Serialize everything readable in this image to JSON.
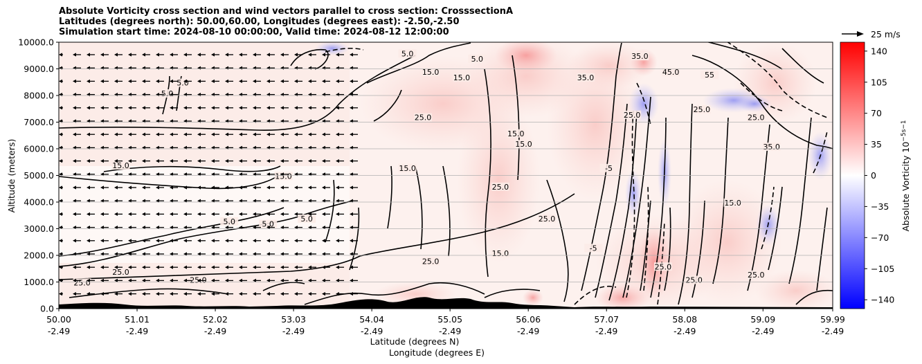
{
  "header": {
    "title_line1": "Absolute Vorticity cross section and wind vectors parallel to cross section: CrosssectionA",
    "title_line2": "Latitudes (degrees north): 50.00,60.00, Longitudes (degrees east): -2.50,-2.50",
    "title_line3": "Simulation start time: 2024-08-10 00:00:00, Valid time: 2024-08-12 12:00:00"
  },
  "chart_data": {
    "type": "heatmap",
    "ylabel": "Altitude (meters)",
    "xlabel_line1": "Latitude (degrees N)",
    "xlabel_line2": "Longitude (degrees E)",
    "x_ticks_lat": [
      "50.00",
      "51.01",
      "52.02",
      "53.03",
      "54.04",
      "55.05",
      "56.06",
      "57.07",
      "58.08",
      "59.09",
      "59.99"
    ],
    "x_ticks_lon": [
      "-2.49",
      "-2.49",
      "-2.49",
      "-2.49",
      "-2.49",
      "-2.49",
      "-2.49",
      "-2.49",
      "-2.49",
      "-2.49",
      "-2.49"
    ],
    "x_values": [
      50.0,
      51.01,
      52.02,
      53.03,
      54.04,
      55.05,
      56.06,
      57.07,
      58.08,
      59.09,
      59.99
    ],
    "xlim": [
      50.0,
      59.99
    ],
    "y_ticks": [
      "0.0",
      "1000.0",
      "2000.0",
      "3000.0",
      "4000.0",
      "5000.0",
      "6000.0",
      "7000.0",
      "8000.0",
      "9000.0",
      "10000.0"
    ],
    "y_values": [
      0,
      1000,
      2000,
      3000,
      4000,
      5000,
      6000,
      7000,
      8000,
      9000,
      10000
    ],
    "ylim": [
      0,
      10000
    ],
    "grid": "horizontal",
    "colorbar": {
      "label": "Absolute Vorticity 10",
      "label_unit": "−5s−1",
      "ticks": [
        "140",
        "105",
        "70",
        "35",
        "0",
        "−35",
        "−70",
        "−105",
        "−140"
      ],
      "tick_values": [
        140,
        105,
        70,
        35,
        0,
        -35,
        -70,
        -105,
        -140
      ],
      "range": [
        -150,
        150
      ],
      "colormap": "bwr",
      "low_color": "#0000ff",
      "mid_color": "#ffffff",
      "high_color": "#ff0000"
    },
    "quiver_key": {
      "label": "25 m/s"
    },
    "contour_labels": [
      {
        "text": "5.0",
        "x": 52.2,
        "y": 3200
      },
      {
        "text": "5.0",
        "x": 53.2,
        "y": 3300
      },
      {
        "text": "5.0",
        "x": 52.7,
        "y": 3100
      },
      {
        "text": "15.0",
        "x": 50.8,
        "y": 5300
      },
      {
        "text": "15.0",
        "x": 52.9,
        "y": 4900
      },
      {
        "text": "5.0",
        "x": 51.4,
        "y": 8000
      },
      {
        "text": "5.0",
        "x": 51.6,
        "y": 8400
      },
      {
        "text": "5.0",
        "x": 55.4,
        "y": 9300
      },
      {
        "text": "5.0",
        "x": 54.5,
        "y": 9500
      },
      {
        "text": "15.0",
        "x": 54.8,
        "y": 8800
      },
      {
        "text": "15.0",
        "x": 55.2,
        "y": 8600
      },
      {
        "text": "25.0",
        "x": 54.7,
        "y": 7100
      },
      {
        "text": "15.0",
        "x": 55.9,
        "y": 6500
      },
      {
        "text": "25.0",
        "x": 55.7,
        "y": 4500
      },
      {
        "text": "15.0",
        "x": 54.5,
        "y": 5200
      },
      {
        "text": "15.0",
        "x": 56.0,
        "y": 6100
      },
      {
        "text": "35.0",
        "x": 57.5,
        "y": 9400
      },
      {
        "text": "45.0",
        "x": 57.9,
        "y": 8800
      },
      {
        "text": "55",
        "x": 58.4,
        "y": 8700
      },
      {
        "text": "25.0",
        "x": 59.0,
        "y": 7100
      },
      {
        "text": "35.0",
        "x": 59.2,
        "y": 6000
      },
      {
        "text": "15.0",
        "x": 58.7,
        "y": 3900
      },
      {
        "text": "25.0",
        "x": 57.8,
        "y": 1500
      },
      {
        "text": "25.0",
        "x": 58.2,
        "y": 1000
      },
      {
        "text": "25.0",
        "x": 59.0,
        "y": 1200
      },
      {
        "text": "15.0",
        "x": 55.7,
        "y": 2000
      },
      {
        "text": "25.0",
        "x": 56.3,
        "y": 3300
      },
      {
        "text": "25.0",
        "x": 54.8,
        "y": 1700
      },
      {
        "text": "25.0",
        "x": 51.8,
        "y": 1000
      },
      {
        "text": "25.0",
        "x": 50.8,
        "y": 1300
      },
      {
        "text": "25.0",
        "x": 50.3,
        "y": 900
      },
      {
        "text": "-5",
        "x": 57.1,
        "y": 5200
      },
      {
        "text": "-5",
        "x": 56.9,
        "y": 2200
      },
      {
        "text": "25.0",
        "x": 57.4,
        "y": 7200
      },
      {
        "text": "25.0",
        "x": 58.3,
        "y": 7400
      },
      {
        "text": "35.0",
        "x": 56.8,
        "y": 8600
      }
    ]
  }
}
